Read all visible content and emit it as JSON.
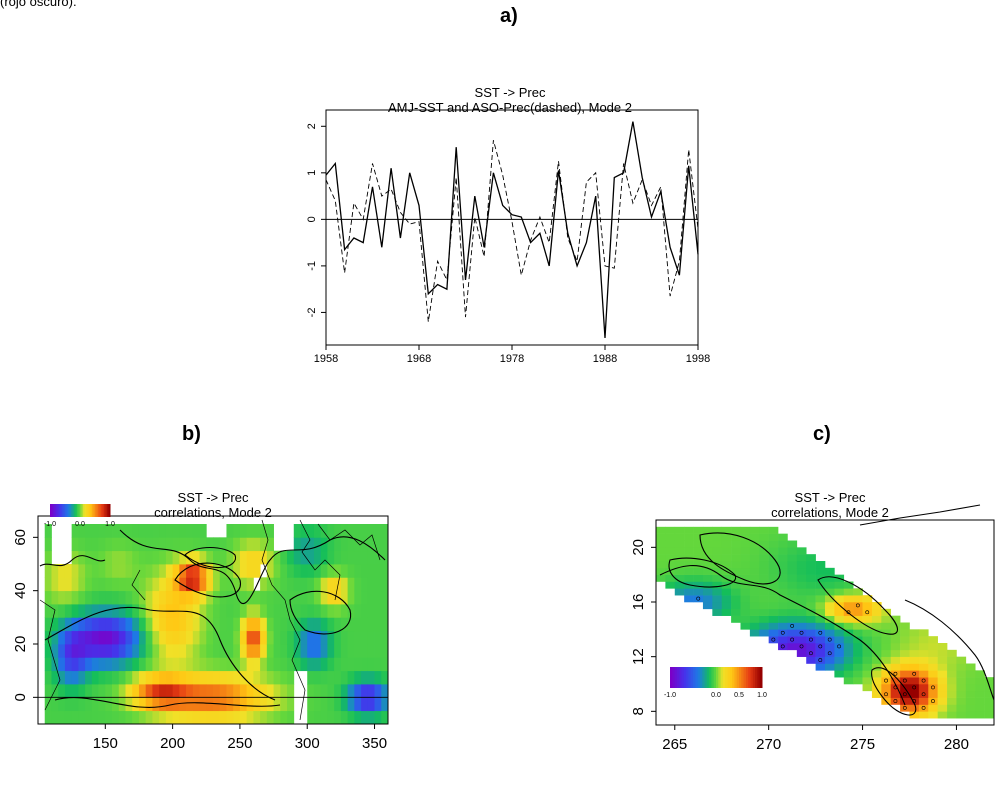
{
  "top_text": "(rojo oscuro).",
  "panels": {
    "a_label": "a)",
    "b_label": "b)",
    "c_label": "c)"
  },
  "chart_data": [
    {
      "type": "line",
      "title": "SST -> Prec",
      "subtitle": "AMJ-SST and ASO-Prec(dashed), Mode 2",
      "xlabel": "",
      "ylabel": "",
      "xlim": [
        1958,
        1998
      ],
      "ylim": [
        -2.7,
        2.35
      ],
      "xticks": [
        1958,
        1968,
        1978,
        1988,
        1998
      ],
      "yticks": [
        -2,
        -1,
        0,
        1,
        2
      ],
      "zero_line": true,
      "x": [
        1958,
        1959,
        1960,
        1961,
        1962,
        1963,
        1964,
        1965,
        1966,
        1967,
        1968,
        1969,
        1970,
        1971,
        1972,
        1973,
        1974,
        1975,
        1976,
        1977,
        1978,
        1979,
        1980,
        1981,
        1982,
        1983,
        1984,
        1985,
        1986,
        1987,
        1988,
        1989,
        1990,
        1991,
        1992,
        1993,
        1994,
        1995,
        1996,
        1997,
        1998
      ],
      "series": [
        {
          "style": "solid",
          "values": [
            0.95,
            1.2,
            -0.65,
            -0.4,
            -0.5,
            0.7,
            -0.6,
            1.1,
            -0.4,
            1.0,
            0.3,
            -1.6,
            -1.4,
            -1.5,
            1.55,
            -1.3,
            0.5,
            -0.6,
            1.0,
            0.3,
            0.1,
            0.05,
            -0.5,
            -0.3,
            -1.0,
            1.05,
            -0.3,
            -1.0,
            -0.5,
            0.5,
            -2.55,
            0.9,
            1.0,
            2.1,
            0.9,
            0.05,
            0.6,
            -0.6,
            -1.2,
            1.15,
            -0.75
          ]
        },
        {
          "style": "dashed",
          "values": [
            0.85,
            0.4,
            -1.15,
            0.35,
            0.0,
            1.2,
            0.5,
            0.65,
            0.15,
            -0.1,
            -0.05,
            -2.2,
            -0.9,
            -1.3,
            0.9,
            -2.1,
            0.05,
            -0.8,
            1.7,
            0.95,
            -0.05,
            -1.2,
            -0.45,
            0.05,
            -0.5,
            1.25,
            -0.4,
            -0.9,
            0.8,
            1.0,
            -1.0,
            -1.05,
            1.2,
            0.35,
            0.85,
            0.3,
            0.7,
            -1.65,
            -0.9,
            1.5,
            -0.2
          ]
        }
      ]
    },
    {
      "type": "heatmap",
      "title": "SST -> Prec",
      "subtitle": "correlations, Mode 2",
      "xlim": [
        100,
        360
      ],
      "ylim": [
        -10,
        68
      ],
      "xticks": [
        150,
        200,
        250,
        300,
        350
      ],
      "yticks": [
        0,
        20,
        40,
        60
      ],
      "colorbar": {
        "ticks": [
          "-1.0",
          "0.0",
          "1.0"
        ]
      },
      "value_ranges": [
        {
          "label": "strong positive",
          "lon": [
            205,
            225
          ],
          "lat": [
            40,
            50
          ],
          "value": 0.8
        },
        {
          "label": "positive",
          "lon": [
            175,
            280
          ],
          "lat": [
            -5,
            10
          ],
          "value": 0.6
        },
        {
          "label": "negative",
          "lon": [
            130,
            175
          ],
          "lat": [
            15,
            30
          ],
          "value": -0.7
        },
        {
          "label": "negative",
          "lon": [
            335,
            355
          ],
          "lat": [
            -5,
            5
          ],
          "value": -0.6
        }
      ]
    },
    {
      "type": "heatmap",
      "title": "SST -> Prec",
      "subtitle": "correlations, Mode 2",
      "xlim": [
        264,
        282
      ],
      "ylim": [
        7,
        22
      ],
      "xticks": [
        265,
        270,
        275,
        280
      ],
      "yticks": [
        8,
        12,
        16,
        20
      ],
      "colorbar": {
        "ticks": [
          "-1.0",
          "0.0",
          "0.5",
          "1.0"
        ]
      },
      "value_ranges": [
        {
          "label": "strong positive",
          "lon": [
            276,
            279
          ],
          "lat": [
            8,
            11
          ],
          "value": 0.9
        },
        {
          "label": "positive",
          "lon": [
            273,
            276
          ],
          "lat": [
            14,
            17
          ],
          "value": 0.4
        },
        {
          "label": "negative",
          "lon": [
            268,
            275
          ],
          "lat": [
            10,
            14
          ],
          "value": -0.8
        }
      ]
    }
  ],
  "colors": {
    "line": "#000000",
    "background": "#ffffff"
  }
}
